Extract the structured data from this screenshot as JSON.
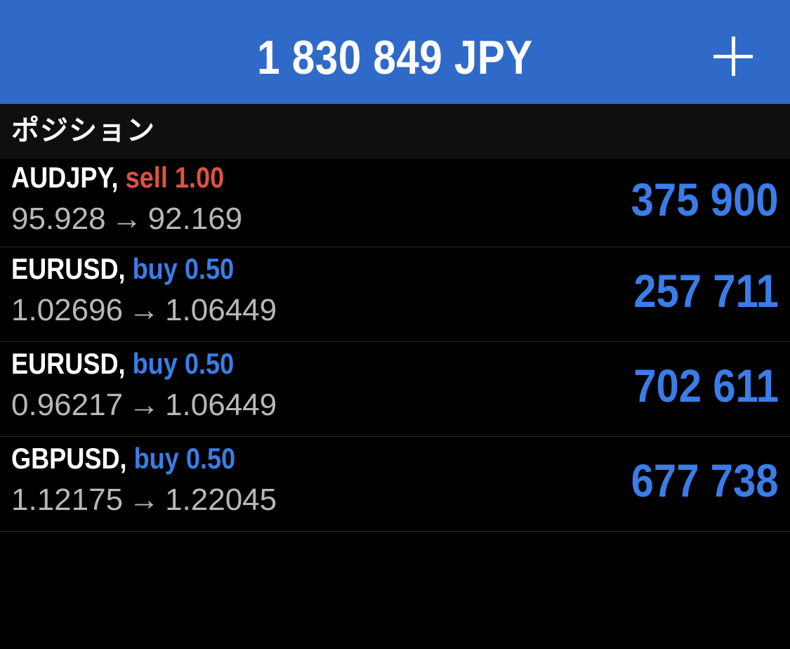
{
  "header": {
    "balance": "1 830 849 JPY",
    "add_icon": "plus-icon"
  },
  "section": {
    "title": "ポジション"
  },
  "positions": [
    {
      "symbol": "AUDJPY,",
      "side": "sell 1.00",
      "side_type": "sell",
      "open_price": "95.928",
      "arrow": "→",
      "current_price": "92.169",
      "profit": "375 900"
    },
    {
      "symbol": "EURUSD,",
      "side": "buy 0.50",
      "side_type": "buy",
      "open_price": "1.02696",
      "arrow": "→",
      "current_price": "1.06449",
      "profit": "257 711"
    },
    {
      "symbol": "EURUSD,",
      "side": "buy 0.50",
      "side_type": "buy",
      "open_price": "0.96217",
      "arrow": "→",
      "current_price": "1.06449",
      "profit": "702 611"
    },
    {
      "symbol": "GBPUSD,",
      "side": "buy 0.50",
      "side_type": "buy",
      "open_price": "1.12175",
      "arrow": "→",
      "current_price": "1.22045",
      "profit": "677 738"
    }
  ],
  "colors": {
    "header_bg": "#2f6ac9",
    "sell": "#db5343",
    "buy": "#3a7de8",
    "profit": "#3a7de8",
    "price_text": "#b8b8b8",
    "background": "#000000"
  }
}
